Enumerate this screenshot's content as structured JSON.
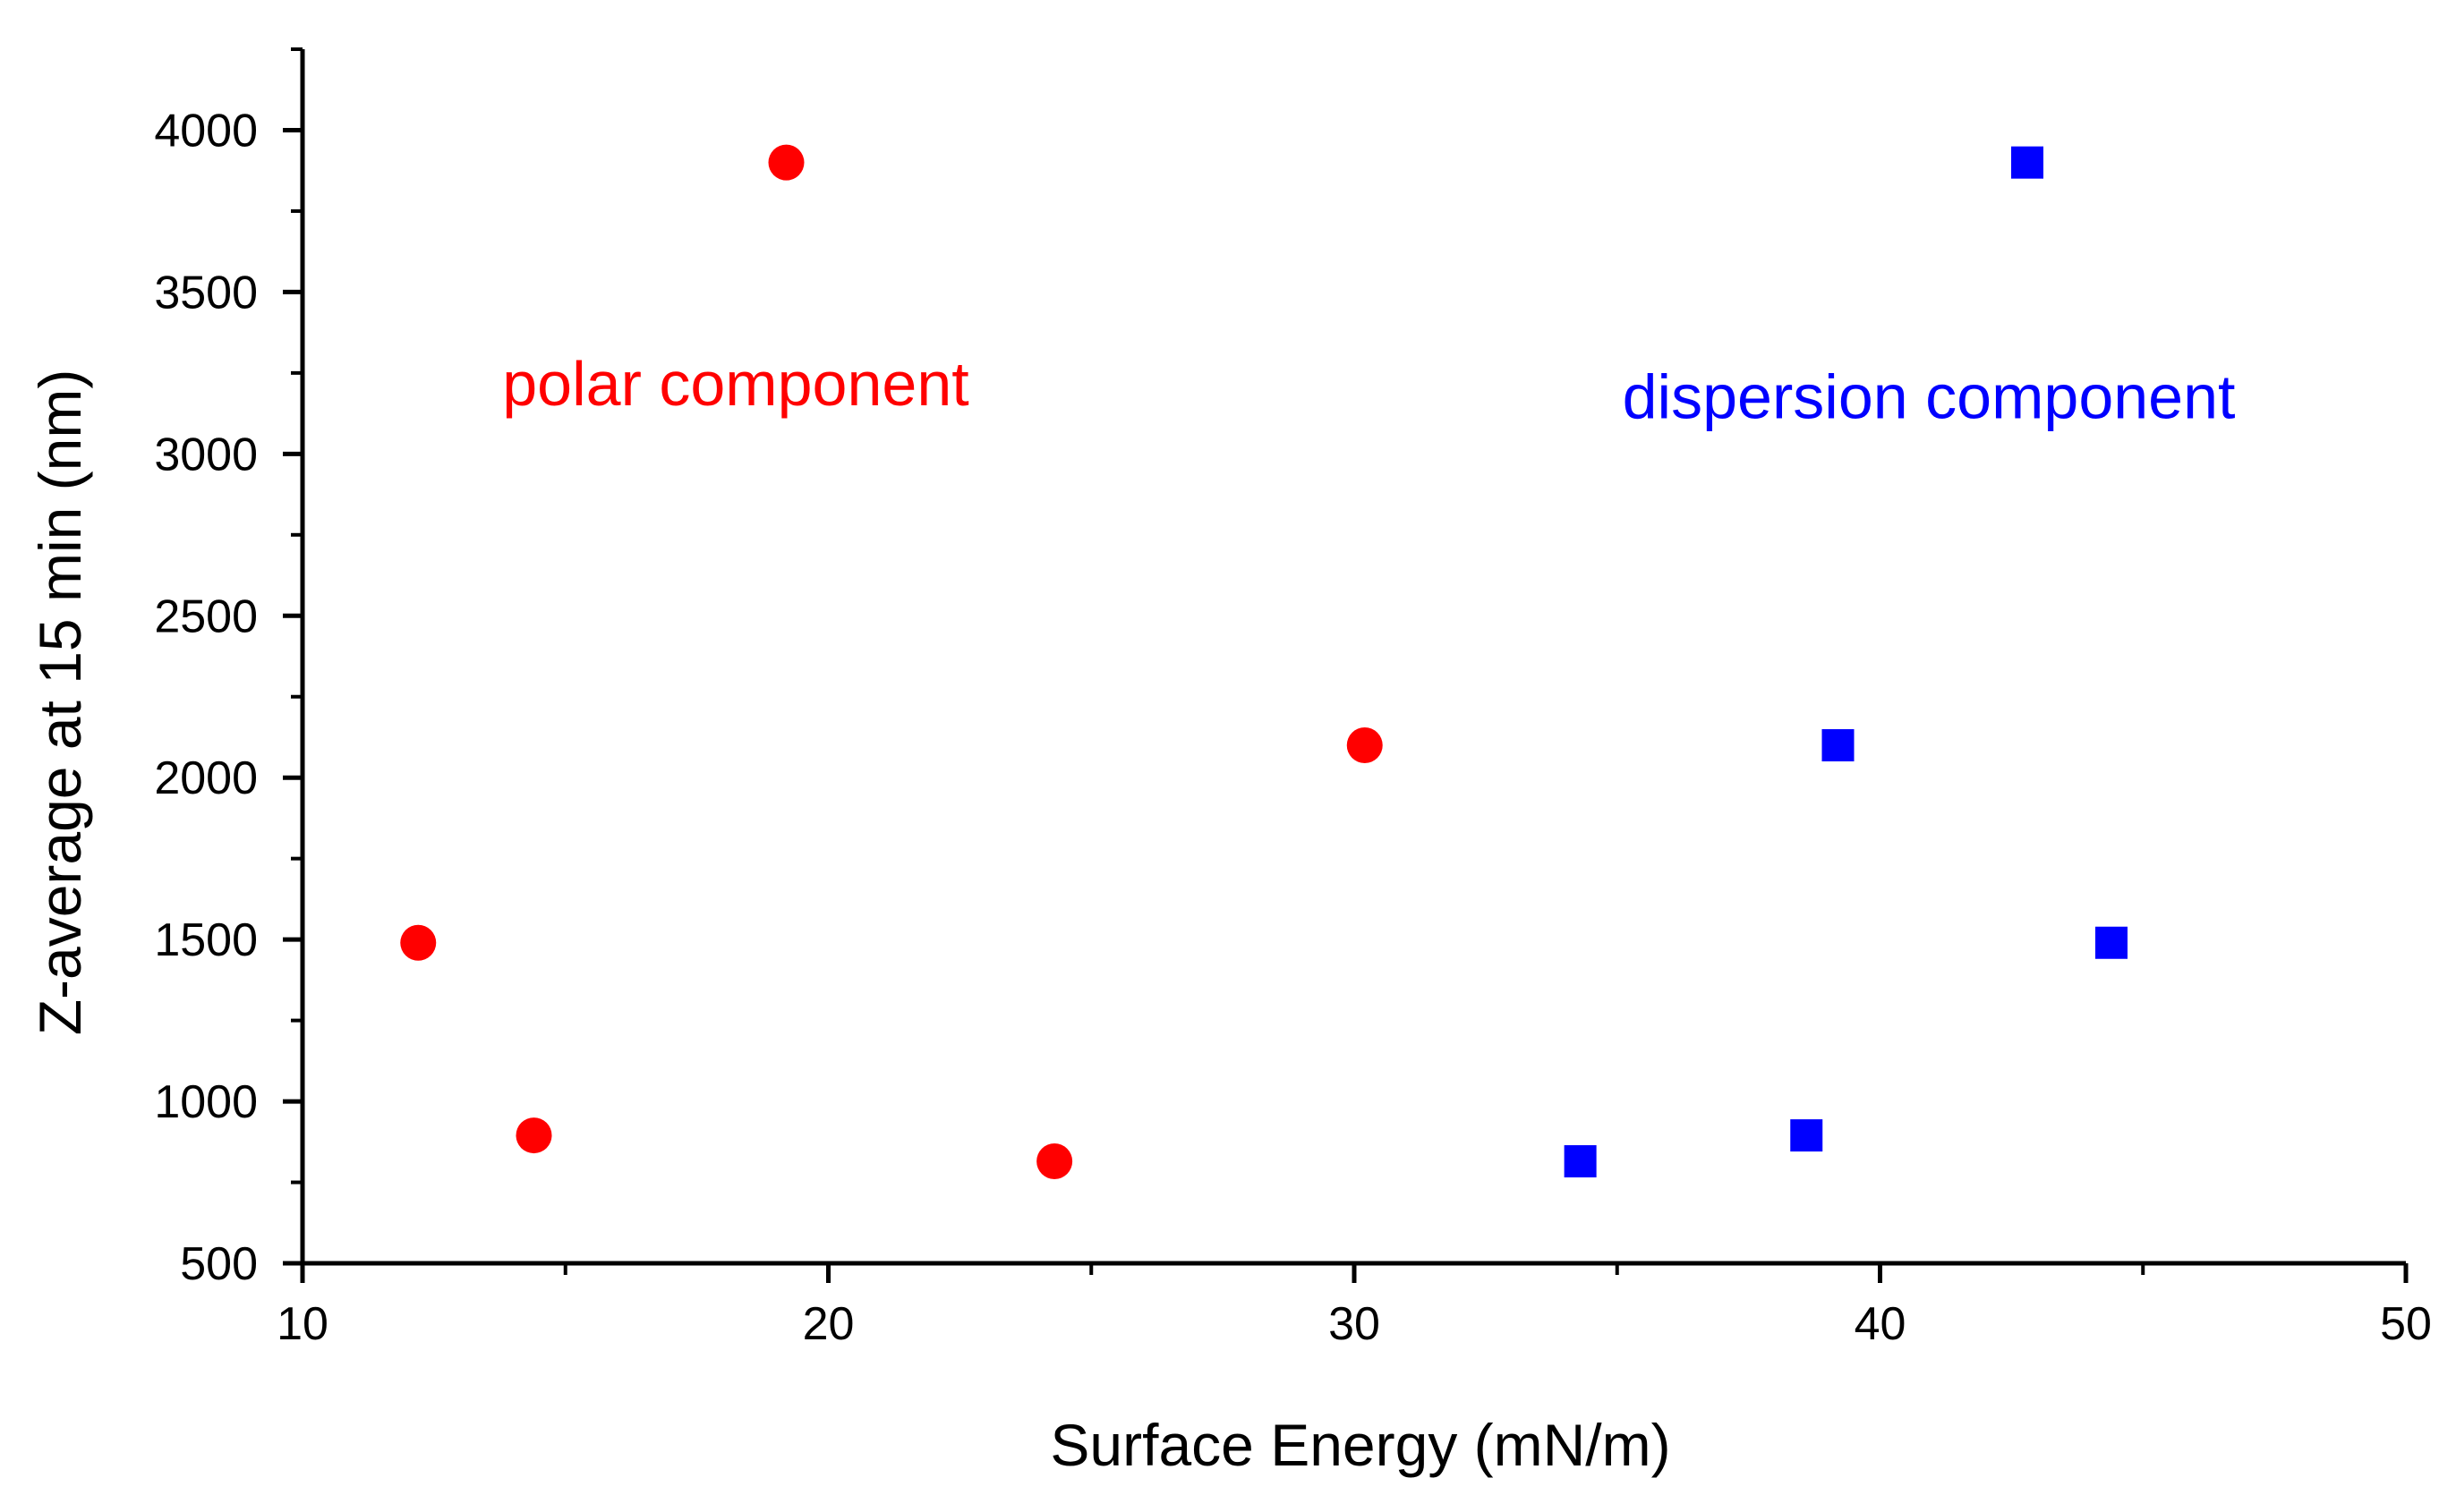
{
  "chart_data": {
    "type": "scatter",
    "title": "",
    "xlabel": "Surface Energy (mN/m)",
    "ylabel": "Z-average at 15 min (nm)",
    "xlim": [
      10,
      50
    ],
    "ylim": [
      500,
      4250
    ],
    "x_ticks": [
      10,
      20,
      30,
      40,
      50
    ],
    "x_ticks_labels": [
      "10",
      "20",
      "30",
      "40",
      "50"
    ],
    "x_minor_ticks": [
      15,
      25,
      35,
      45
    ],
    "y_ticks": [
      500,
      1000,
      1500,
      2000,
      2500,
      3000,
      3500,
      4000
    ],
    "y_ticks_labels": [
      "500",
      "1000",
      "1500",
      "2000",
      "2500",
      "3000",
      "3500",
      "4000"
    ],
    "y_minor_ticks": [
      750,
      1250,
      1750,
      2250,
      2750,
      3250,
      3750,
      4250
    ],
    "grid": false,
    "series": [
      {
        "name": "polar component",
        "marker": "circle",
        "color": "#ff0000",
        "label_anchor": [
          13.8,
          3150
        ],
        "points": [
          {
            "x": 12.2,
            "y": 1490
          },
          {
            "x": 14.4,
            "y": 895
          },
          {
            "x": 19.2,
            "y": 3900
          },
          {
            "x": 24.3,
            "y": 815
          },
          {
            "x": 30.2,
            "y": 2100
          }
        ]
      },
      {
        "name": "dispersion component",
        "marker": "square",
        "color": "#0000ff",
        "label_anchor": [
          35.1,
          3110
        ],
        "points": [
          {
            "x": 34.3,
            "y": 815
          },
          {
            "x": 38.6,
            "y": 895
          },
          {
            "x": 39.2,
            "y": 2100
          },
          {
            "x": 42.8,
            "y": 3900
          },
          {
            "x": 44.4,
            "y": 1490
          }
        ]
      }
    ]
  }
}
